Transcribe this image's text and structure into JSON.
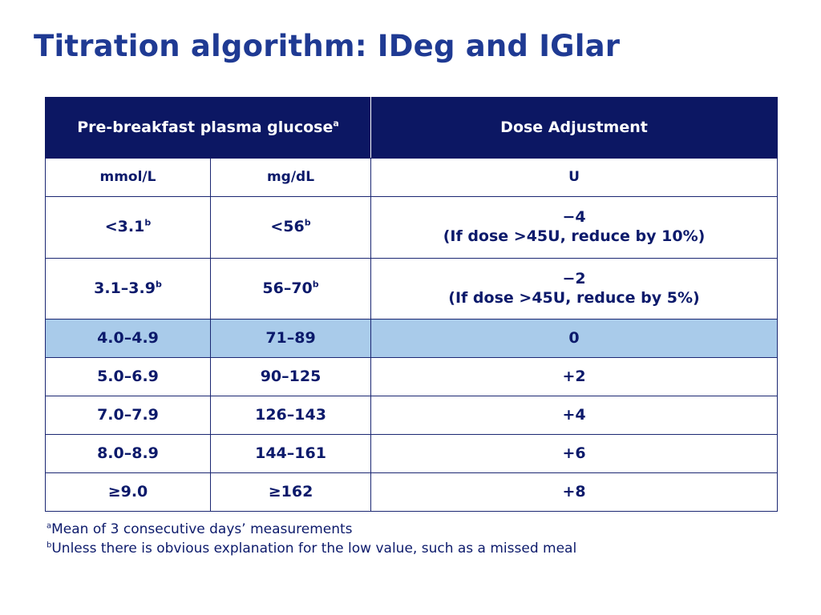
{
  "slide": {
    "title": "Titration algorithm: IDeg and IGlar"
  },
  "table": {
    "header": {
      "glucose": "Pre-breakfast plasma glucose",
      "glucose_sup": "a",
      "dose": "Dose Adjustment"
    },
    "units": {
      "mmol": "mmol/L",
      "mgdl": "mg/dL",
      "dose": "U"
    },
    "rows": [
      {
        "mmol": "<3.1",
        "mmol_sup": "b",
        "mgdl": "<56",
        "mgdl_sup": "b",
        "dose": "−4",
        "note": "(If dose >45U, reduce by 10%)"
      },
      {
        "mmol": "3.1–3.9",
        "mmol_sup": "b",
        "mgdl": "56–70",
        "mgdl_sup": "b",
        "dose": "−2",
        "note": "(If dose >45U, reduce by 5%)"
      },
      {
        "mmol": "4.0–4.9",
        "mgdl": "71–89",
        "dose": "0"
      },
      {
        "mmol": "5.0–6.9",
        "mgdl": "90–125",
        "dose": "+2"
      },
      {
        "mmol": "7.0–7.9",
        "mgdl": "126–143",
        "dose": "+4"
      },
      {
        "mmol": "8.0–8.9",
        "mgdl": "144–161",
        "dose": "+6"
      },
      {
        "mmol": "≥9.0",
        "mgdl": "≥162",
        "dose": "+8"
      }
    ],
    "highlight_row_color": "#a9cbea",
    "header_color": "#0c1763"
  },
  "footnotes": [
    {
      "mark": "a",
      "text": "Mean of 3 consecutive days’ measurements"
    },
    {
      "mark": "b",
      "text": "Unless there is obvious explanation for the low value, such as a missed meal"
    }
  ],
  "colors": {
    "title": "#1f3a93",
    "text": "#0c1a6b"
  }
}
